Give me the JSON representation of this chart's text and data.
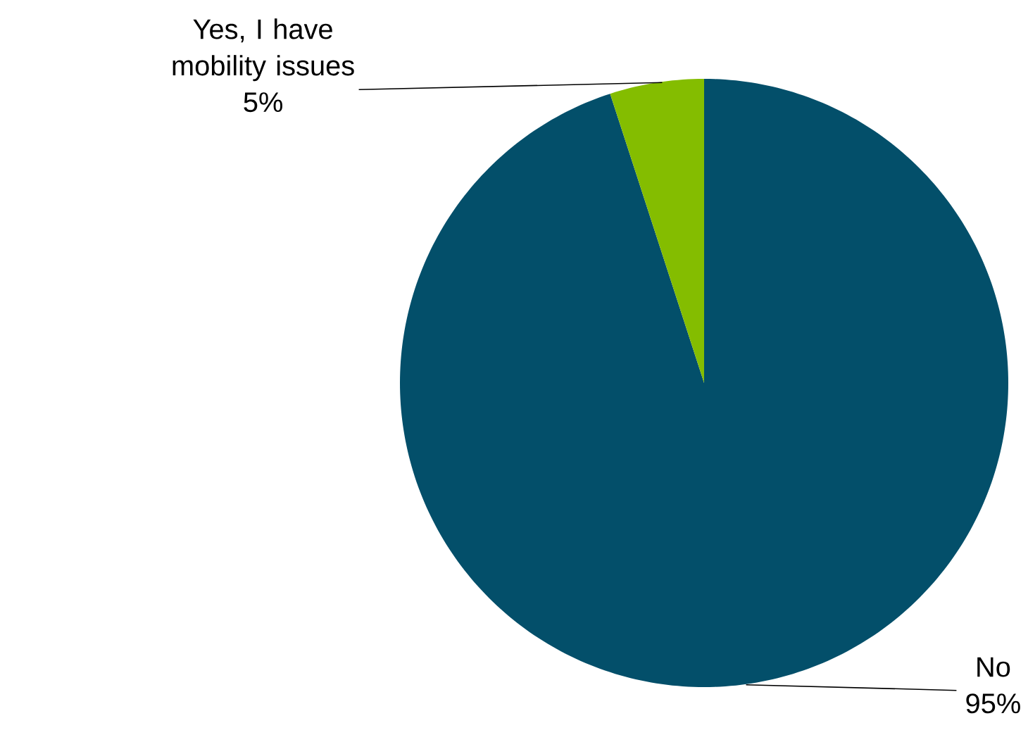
{
  "chart_data": {
    "type": "pie",
    "categories": [
      "No",
      "Yes, I have mobility issues"
    ],
    "values": [
      95,
      5
    ],
    "value_labels": [
      "95%",
      "5%"
    ],
    "colors": [
      "#034f6a",
      "#84bd00"
    ]
  }
}
